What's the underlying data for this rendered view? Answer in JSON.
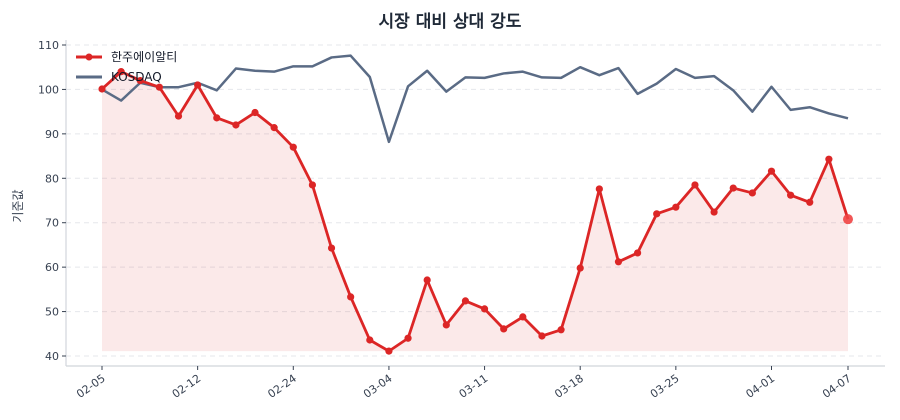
{
  "chart_data": {
    "type": "line",
    "title": "시장 대비 상대 강도",
    "xlabel": "",
    "ylabel": "기준값",
    "ylim": [
      38.5,
      111
    ],
    "yticks": [
      40,
      50,
      60,
      70,
      80,
      90,
      100,
      110
    ],
    "xtick_labels": [
      "02-05",
      "02-12",
      "02-24",
      "03-04",
      "03-11",
      "03-18",
      "03-25",
      "04-01",
      "04-07"
    ],
    "xtick_indices": [
      0,
      5,
      10,
      15,
      20,
      25,
      30,
      35,
      39
    ],
    "grid": "horizontal dashed",
    "legend_position": "upper left",
    "fill_baseline": 41.1,
    "series": [
      {
        "name": "한주에이알티",
        "color": "#dc2626",
        "marker": "circle",
        "fill": true,
        "values": [
          100.1,
          104.0,
          102.0,
          100.5,
          94.0,
          101.0,
          93.6,
          92.0,
          94.8,
          91.4,
          87.0,
          78.5,
          64.3,
          53.3,
          43.6,
          41.1,
          44.0,
          57.1,
          47.0,
          52.4,
          50.6,
          46.1,
          48.8,
          44.5,
          45.9,
          59.8,
          77.6,
          61.2,
          63.2,
          72.0,
          73.5,
          78.5,
          72.4,
          77.8,
          76.7,
          81.6,
          76.2,
          74.6,
          84.3,
          70.8
        ]
      },
      {
        "name": "KOSDAQ",
        "color": "#5a6b85",
        "marker": "none",
        "fill": false,
        "values": [
          100.0,
          97.5,
          101.5,
          100.5,
          100.5,
          101.5,
          99.8,
          104.7,
          104.2,
          104.0,
          105.2,
          105.2,
          107.2,
          107.6,
          102.8,
          88.2,
          100.7,
          104.2,
          99.5,
          102.7,
          102.6,
          103.6,
          104.0,
          102.7,
          102.6,
          105.0,
          103.2,
          104.8,
          99.0,
          101.3,
          104.6,
          102.6,
          103.0,
          99.8,
          95.0,
          100.6,
          95.4,
          96.0,
          94.6,
          93.5
        ]
      }
    ]
  }
}
